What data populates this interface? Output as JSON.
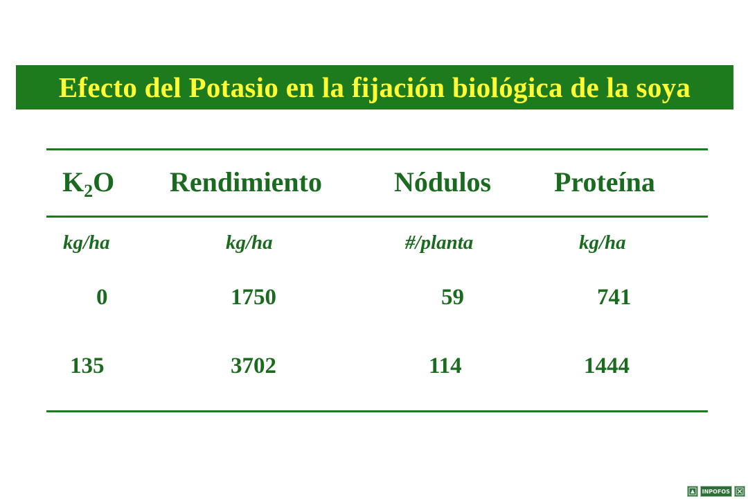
{
  "title": "Efecto del Potasio en la fijación biológica de la soya",
  "table": {
    "headers": [
      {
        "main": "K",
        "sub": "2",
        "tail": "O"
      },
      {
        "main": "Rendimiento"
      },
      {
        "main": "Nódulos"
      },
      {
        "main": "Proteína"
      }
    ],
    "units": [
      "kg/ha",
      "kg/ha",
      "#/planta",
      "kg/ha"
    ],
    "rows": [
      [
        "0",
        "1750",
        "59",
        "741"
      ],
      [
        "135",
        "3702",
        "114",
        "1444"
      ]
    ]
  },
  "logo": {
    "text": "INPOFOS",
    "icon_left": "logo-mark-icon",
    "icon_right": "logo-mark-icon"
  },
  "colors": {
    "title_bg": "#1d7a1d",
    "title_text": "#ffff33",
    "table_text": "#1a6b1f",
    "rules": "#1d7a1d"
  }
}
